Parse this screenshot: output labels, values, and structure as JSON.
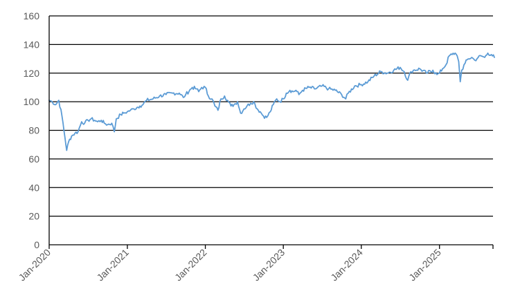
{
  "chart_data": {
    "type": "line",
    "title": "",
    "xlabel": "",
    "ylabel": "",
    "ylim": [
      0,
      160
    ],
    "yticks": [
      0,
      20,
      40,
      60,
      80,
      100,
      120,
      140,
      160
    ],
    "grid": true,
    "legend": "none",
    "x_tick_labels": [
      "Jan-2020",
      "Jan-2021",
      "Jan-2022",
      "Jan-2023",
      "Jan-2024",
      "Jan-2025"
    ],
    "x_range": [
      "2020-01",
      "2025-09"
    ],
    "series": [
      {
        "name": "",
        "color": "#5B9BD5",
        "points": [
          [
            "2020-01-01",
            101
          ],
          [
            "2020-01-15",
            100
          ],
          [
            "2020-02-01",
            98
          ],
          [
            "2020-02-15",
            101
          ],
          [
            "2020-03-01",
            90
          ],
          [
            "2020-03-15",
            75
          ],
          [
            "2020-03-23",
            66
          ],
          [
            "2020-04-01",
            72
          ],
          [
            "2020-04-15",
            76
          ],
          [
            "2020-05-01",
            78
          ],
          [
            "2020-05-15",
            79
          ],
          [
            "2020-06-01",
            86
          ],
          [
            "2020-06-15",
            85
          ],
          [
            "2020-07-01",
            87
          ],
          [
            "2020-07-15",
            88
          ],
          [
            "2020-08-01",
            87
          ],
          [
            "2020-08-15",
            86
          ],
          [
            "2020-09-01",
            87
          ],
          [
            "2020-09-15",
            85
          ],
          [
            "2020-10-01",
            84
          ],
          [
            "2020-10-20",
            85
          ],
          [
            "2020-11-01",
            79
          ],
          [
            "2020-11-10",
            88
          ],
          [
            "2020-12-01",
            91
          ],
          [
            "2020-12-15",
            92
          ],
          [
            "2021-01-01",
            93
          ],
          [
            "2021-01-15",
            94
          ],
          [
            "2021-02-01",
            95
          ],
          [
            "2021-02-15",
            96
          ],
          [
            "2021-03-01",
            97
          ],
          [
            "2021-03-15",
            98
          ],
          [
            "2021-04-01",
            101
          ],
          [
            "2021-05-01",
            102
          ],
          [
            "2021-06-01",
            104
          ],
          [
            "2021-07-01",
            105
          ],
          [
            "2021-08-01",
            106
          ],
          [
            "2021-09-01",
            106
          ],
          [
            "2021-09-20",
            103
          ],
          [
            "2021-10-01",
            105
          ],
          [
            "2021-11-01",
            110
          ],
          [
            "2021-11-20",
            109
          ],
          [
            "2021-12-01",
            107
          ],
          [
            "2021-12-15",
            110
          ],
          [
            "2022-01-01",
            110
          ],
          [
            "2022-01-15",
            104
          ],
          [
            "2022-02-01",
            102
          ],
          [
            "2022-02-15",
            97
          ],
          [
            "2022-03-01",
            94
          ],
          [
            "2022-03-15",
            102
          ],
          [
            "2022-04-01",
            104
          ],
          [
            "2022-04-15",
            101
          ],
          [
            "2022-05-01",
            97
          ],
          [
            "2022-05-15",
            98
          ],
          [
            "2022-06-01",
            100
          ],
          [
            "2022-06-15",
            92
          ],
          [
            "2022-07-01",
            95
          ],
          [
            "2022-07-15",
            97
          ],
          [
            "2022-08-01",
            99
          ],
          [
            "2022-08-15",
            100
          ],
          [
            "2022-09-01",
            95
          ],
          [
            "2022-09-15",
            93
          ],
          [
            "2022-09-30",
            90
          ],
          [
            "2022-10-15",
            89
          ],
          [
            "2022-11-01",
            93
          ],
          [
            "2022-11-15",
            98
          ],
          [
            "2022-12-01",
            102
          ],
          [
            "2022-12-15",
            100
          ],
          [
            "2023-01-01",
            102
          ],
          [
            "2023-01-15",
            106
          ],
          [
            "2023-02-01",
            108
          ],
          [
            "2023-02-15",
            107
          ],
          [
            "2023-03-01",
            108
          ],
          [
            "2023-03-15",
            105
          ],
          [
            "2023-04-01",
            108
          ],
          [
            "2023-05-01",
            110
          ],
          [
            "2023-06-01",
            109
          ],
          [
            "2023-07-01",
            111
          ],
          [
            "2023-08-01",
            109
          ],
          [
            "2023-09-01",
            108
          ],
          [
            "2023-10-01",
            105
          ],
          [
            "2023-10-20",
            102
          ],
          [
            "2023-11-01",
            106
          ],
          [
            "2023-12-01",
            111
          ],
          [
            "2024-01-01",
            112
          ],
          [
            "2024-02-01",
            114
          ],
          [
            "2024-03-01",
            118
          ],
          [
            "2024-04-01",
            121
          ],
          [
            "2024-05-01",
            120
          ],
          [
            "2024-06-01",
            122
          ],
          [
            "2024-07-01",
            124
          ],
          [
            "2024-07-20",
            121
          ],
          [
            "2024-08-05",
            115
          ],
          [
            "2024-08-20",
            121
          ],
          [
            "2024-09-01",
            122
          ],
          [
            "2024-10-01",
            123
          ],
          [
            "2024-11-01",
            120
          ],
          [
            "2024-12-01",
            122
          ],
          [
            "2024-12-20",
            119
          ],
          [
            "2025-01-01",
            120
          ],
          [
            "2025-01-15",
            123
          ],
          [
            "2025-02-01",
            126
          ],
          [
            "2025-02-15",
            132
          ],
          [
            "2025-03-01",
            133
          ],
          [
            "2025-03-15",
            134
          ],
          [
            "2025-03-25",
            132
          ],
          [
            "2025-04-01",
            128
          ],
          [
            "2025-04-08",
            114
          ],
          [
            "2025-04-15",
            122
          ],
          [
            "2025-05-01",
            127
          ],
          [
            "2025-05-15",
            130
          ],
          [
            "2025-06-01",
            131
          ],
          [
            "2025-06-15",
            129
          ],
          [
            "2025-07-01",
            131
          ],
          [
            "2025-07-15",
            132
          ],
          [
            "2025-08-01",
            131
          ],
          [
            "2025-08-15",
            134
          ],
          [
            "2025-09-01",
            133
          ],
          [
            "2025-09-15",
            131
          ]
        ]
      }
    ]
  }
}
